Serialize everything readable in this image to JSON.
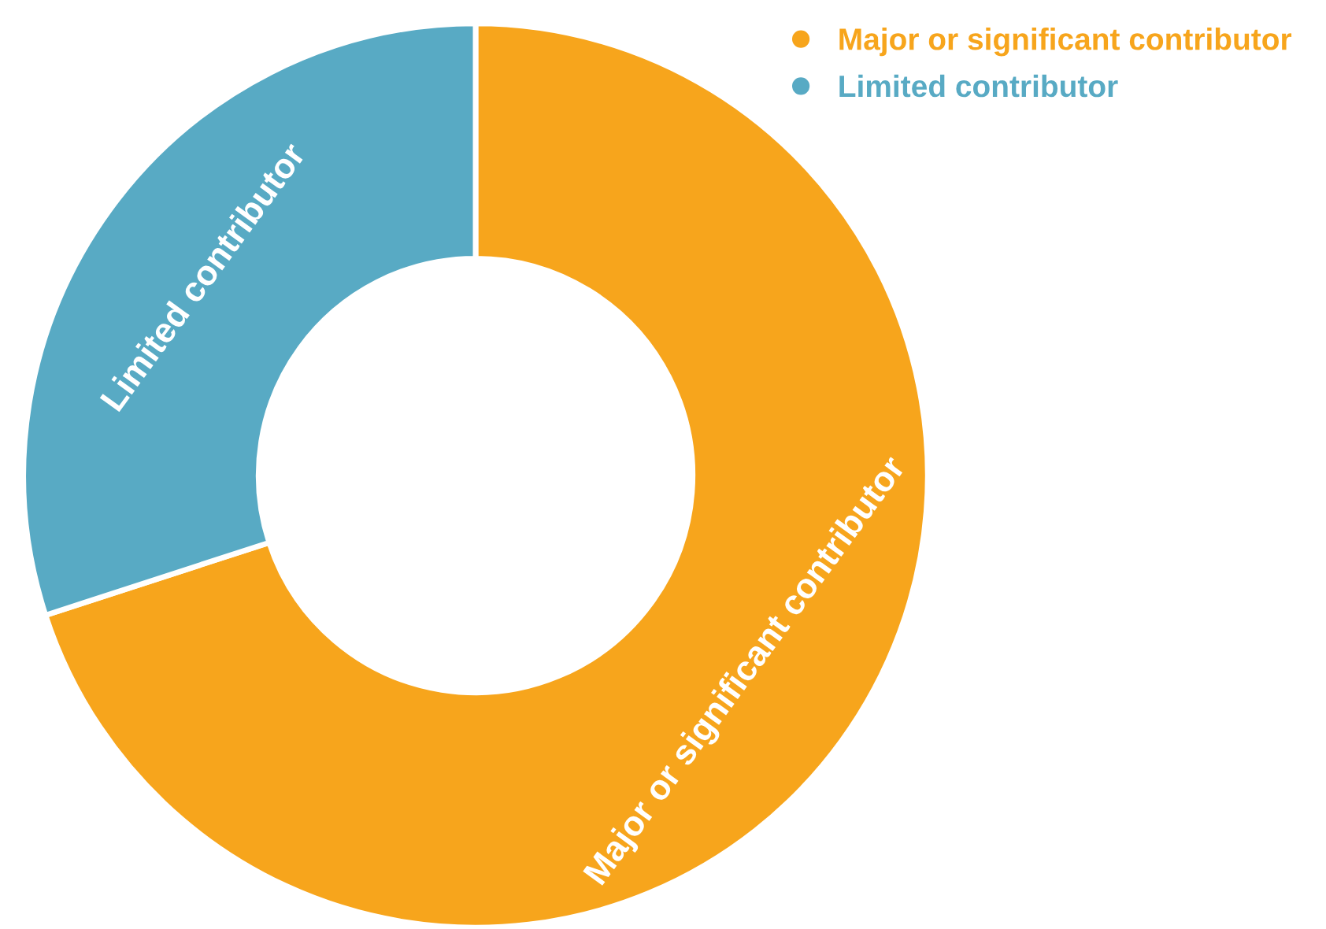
{
  "chart_data": {
    "type": "donut",
    "categories": [
      "Major or significant contributor",
      "Limited contributor"
    ],
    "values": [
      70,
      30
    ],
    "colors": [
      "#f7a51c",
      "#58aac4"
    ],
    "legend": "top right"
  }
}
